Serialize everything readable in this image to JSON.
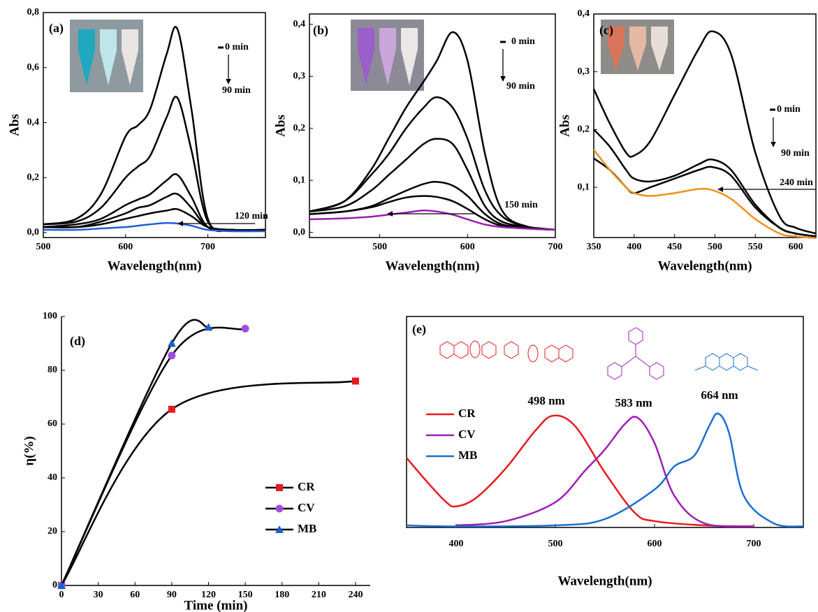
{
  "chart_data": [
    {
      "type": "line",
      "x_label": "Wavelength(nm)",
      "y_label": "Abs",
      "x": [
        500,
        540,
        570,
        600,
        615,
        630,
        650,
        663,
        680,
        700,
        730,
        770
      ],
      "series": [
        {
          "color": "#000000",
          "values": [
            0.03,
            0.05,
            0.14,
            0.35,
            0.39,
            0.45,
            0.65,
            0.74,
            0.45,
            0.05,
            0.01,
            0.01
          ]
        },
        {
          "color": "#000000",
          "values": [
            0.03,
            0.04,
            0.09,
            0.2,
            0.24,
            0.28,
            0.42,
            0.49,
            0.3,
            0.04,
            0.01,
            0.01
          ]
        },
        {
          "color": "#000000",
          "values": [
            0.02,
            0.03,
            0.05,
            0.1,
            0.12,
            0.14,
            0.19,
            0.21,
            0.13,
            0.02,
            0.01,
            0.01
          ]
        },
        {
          "color": "#000000",
          "values": [
            0.02,
            0.02,
            0.04,
            0.07,
            0.09,
            0.1,
            0.13,
            0.14,
            0.09,
            0.02,
            0.01,
            0.01
          ]
        },
        {
          "color": "#000000",
          "values": [
            0.02,
            0.02,
            0.03,
            0.05,
            0.06,
            0.07,
            0.08,
            0.085,
            0.06,
            0.02,
            0.01,
            0.01
          ]
        },
        {
          "color": "#1f5fd6",
          "values": [
            0.01,
            0.01,
            0.015,
            0.02,
            0.025,
            0.03,
            0.035,
            0.033,
            0.025,
            0.01,
            0.005,
            0.005
          ]
        }
      ],
      "xlim": [
        500,
        770
      ],
      "xticks": [
        500,
        600,
        700
      ],
      "ylim": [
        -0.018,
        0.8
      ],
      "yticks": [
        {
          "value": 0,
          "label": "0,0"
        },
        {
          "value": 0.2,
          "label": "0,2"
        },
        {
          "value": 0.4,
          "label": "0,4"
        },
        {
          "value": 0.6,
          "label": "0,6"
        },
        {
          "value": 0.8,
          "label": "0,8"
        }
      ],
      "annotations": [
        {
          "text": "(a)"
        },
        {
          "text": "0 min"
        },
        {
          "text": "90 min"
        },
        {
          "text": "120 min"
        }
      ]
    },
    {
      "type": "line",
      "x_label": "Wavelength(nm)",
      "y_label": "Abs",
      "x": [
        420,
        460,
        490,
        510,
        530,
        550,
        565,
        583,
        600,
        620,
        640,
        670,
        700
      ],
      "series": [
        {
          "color": "#000000",
          "values": [
            0.04,
            0.06,
            0.12,
            0.18,
            0.24,
            0.29,
            0.33,
            0.385,
            0.33,
            0.15,
            0.04,
            0.01,
            0.005
          ]
        },
        {
          "color": "#000000",
          "values": [
            0.04,
            0.06,
            0.11,
            0.15,
            0.2,
            0.24,
            0.26,
            0.24,
            0.18,
            0.08,
            0.03,
            0.01,
            0.005
          ]
        },
        {
          "color": "#000000",
          "values": [
            0.04,
            0.05,
            0.08,
            0.11,
            0.14,
            0.17,
            0.18,
            0.17,
            0.12,
            0.05,
            0.02,
            0.01,
            0.005
          ]
        },
        {
          "color": "#000000",
          "values": [
            0.035,
            0.04,
            0.05,
            0.065,
            0.08,
            0.093,
            0.097,
            0.09,
            0.07,
            0.035,
            0.015,
            0.008,
            0.005
          ]
        },
        {
          "color": "#000000",
          "values": [
            0.035,
            0.04,
            0.048,
            0.058,
            0.067,
            0.07,
            0.068,
            0.06,
            0.045,
            0.025,
            0.012,
            0.007,
            0.005
          ]
        },
        {
          "color": "#9b1fb0",
          "values": [
            0.025,
            0.027,
            0.03,
            0.034,
            0.038,
            0.042,
            0.04,
            0.034,
            0.025,
            0.015,
            0.01,
            0.007,
            0.005
          ]
        }
      ],
      "xlim": [
        420,
        700
      ],
      "xticks": [
        500,
        600,
        700
      ],
      "ylim": [
        -0.01,
        0.42
      ],
      "yticks": [
        {
          "value": 0,
          "label": "0,0"
        },
        {
          "value": 0.1,
          "label": "0,1"
        },
        {
          "value": 0.2,
          "label": "0,2"
        },
        {
          "value": 0.3,
          "label": "0,3"
        },
        {
          "value": 0.4,
          "label": "0,4"
        }
      ],
      "annotations": [
        {
          "text": "(b)"
        },
        {
          "text": "0 min"
        },
        {
          "text": "90 min"
        },
        {
          "text": "150 min"
        }
      ]
    },
    {
      "type": "line",
      "x_label": "Wavelength(nm)",
      "y_label": "Abs",
      "x": [
        350,
        370,
        390,
        400,
        420,
        450,
        480,
        497,
        520,
        550,
        580,
        600,
        625
      ],
      "series": [
        {
          "color": "#000000",
          "values": [
            0.27,
            0.21,
            0.16,
            0.155,
            0.18,
            0.26,
            0.34,
            0.37,
            0.33,
            0.16,
            0.05,
            0.03,
            0.02
          ]
        },
        {
          "color": "#000000",
          "values": [
            0.2,
            0.17,
            0.13,
            0.115,
            0.11,
            0.12,
            0.14,
            0.148,
            0.13,
            0.07,
            0.03,
            0.02,
            0.015
          ]
        },
        {
          "color": "#000000",
          "values": [
            0.15,
            0.13,
            0.1,
            0.09,
            0.1,
            0.115,
            0.13,
            0.135,
            0.12,
            0.065,
            0.03,
            0.02,
            0.015
          ]
        },
        {
          "color": "#f0901e",
          "values": [
            0.165,
            0.13,
            0.1,
            0.09,
            0.085,
            0.09,
            0.097,
            0.095,
            0.08,
            0.045,
            0.02,
            0.015,
            0.012
          ]
        }
      ],
      "xlim": [
        350,
        625
      ],
      "xticks": [
        350,
        400,
        450,
        500,
        550,
        600
      ],
      "ylim": [
        0.013,
        0.4
      ],
      "yticks": [
        {
          "value": 0.1,
          "label": "0,1"
        },
        {
          "value": 0.2,
          "label": "0,2"
        },
        {
          "value": 0.3,
          "label": "0,3"
        },
        {
          "value": 0.4,
          "label": "0,4"
        }
      ],
      "annotations": [
        {
          "text": "(c)"
        },
        {
          "text": "0 min"
        },
        {
          "text": "90 min"
        },
        {
          "text": "240 min"
        }
      ]
    },
    {
      "type": "line",
      "x_label": "Time (min)",
      "y_label": "η(%)",
      "line_color": "#000000",
      "legend": "lower right",
      "series": [
        {
          "name": "CR",
          "color": "#e8191c",
          "marker": "square",
          "x": [
            0,
            90,
            240
          ],
          "values": [
            0,
            65.5,
            76
          ]
        },
        {
          "name": "CV",
          "color": "#9b4fe0",
          "marker": "circle",
          "x": [
            0,
            90,
            150
          ],
          "values": [
            0,
            85.5,
            95.5
          ]
        },
        {
          "name": "MB",
          "color": "#1b5fd1",
          "marker": "triangle",
          "x": [
            0,
            90,
            120
          ],
          "values": [
            0,
            90,
            96
          ]
        }
      ],
      "xlim": [
        0,
        252
      ],
      "xticks": [
        0,
        30,
        60,
        90,
        120,
        150,
        180,
        210,
        240
      ],
      "ylim": [
        0,
        100
      ],
      "yticks": [
        0,
        20,
        40,
        60,
        80,
        100
      ],
      "annotations": [
        {
          "text": "(d)"
        }
      ]
    },
    {
      "type": "line",
      "x_label": "Wavelength(nm)",
      "legend": "upper left",
      "series": [
        {
          "name": "CR",
          "color": "#e8191c",
          "x": [
            350,
            370,
            390,
            400,
            420,
            450,
            480,
            498,
            520,
            550,
            580,
            600,
            650,
            700
          ],
          "values": [
            0.33,
            0.22,
            0.12,
            0.1,
            0.14,
            0.28,
            0.46,
            0.53,
            0.48,
            0.26,
            0.07,
            0.03,
            0.01,
            0.005
          ]
        },
        {
          "name": "CV",
          "color": "#9c1fb5",
          "x": [
            400,
            450,
            500,
            530,
            550,
            570,
            583,
            600,
            620,
            650,
            700
          ],
          "values": [
            0.01,
            0.03,
            0.12,
            0.27,
            0.37,
            0.49,
            0.52,
            0.4,
            0.15,
            0.02,
            0.005
          ]
        },
        {
          "name": "MB",
          "color": "#1b6fd1",
          "x": [
            350,
            400,
            500,
            550,
            600,
            620,
            640,
            655,
            664,
            675,
            690,
            720,
            750
          ],
          "values": [
            0.01,
            0.005,
            0.01,
            0.04,
            0.18,
            0.29,
            0.34,
            0.48,
            0.54,
            0.45,
            0.15,
            0.02,
            0.005
          ]
        }
      ],
      "xlim": [
        350,
        750
      ],
      "xticks": [
        400,
        500,
        600,
        700
      ],
      "ylim": [
        0,
        1
      ],
      "annotations": [
        {
          "text": "(e)"
        },
        {
          "text": "498 nm",
          "color": "#e8191c"
        },
        {
          "text": "583 nm",
          "color": "#9c1fb5"
        },
        {
          "text": "664 nm",
          "color": "#1b6fd1"
        }
      ]
    }
  ]
}
